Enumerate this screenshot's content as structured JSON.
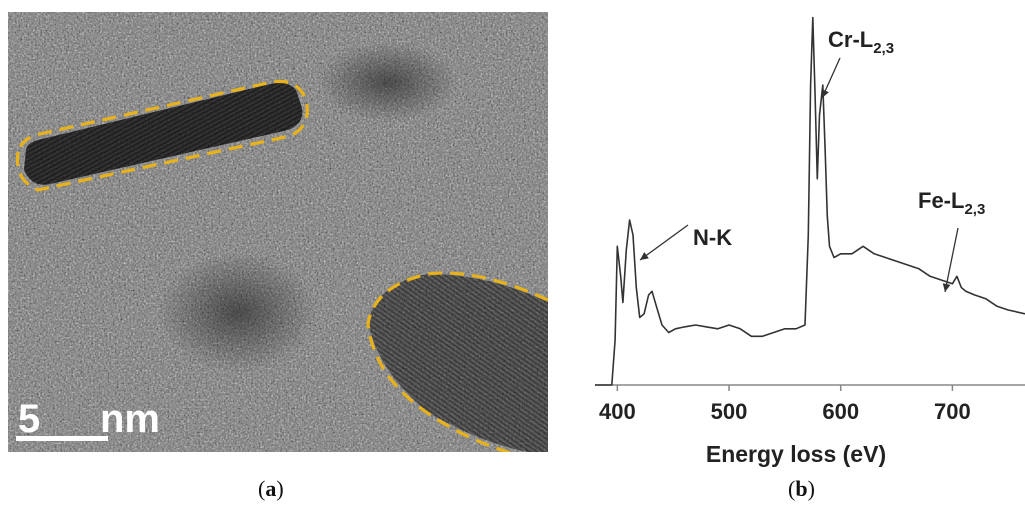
{
  "panel_a": {
    "scale_bar_number": "5",
    "scale_bar_unit": "nm",
    "outline_color": "#E8B21A"
  },
  "captions": {
    "a_open": "(",
    "a_letter": "a",
    "a_close": ")",
    "b_open": "(",
    "b_letter": "b",
    "b_close": ")"
  },
  "chart_data": {
    "type": "line",
    "title": "",
    "xlabel": "Energy loss (eV)",
    "ylabel": "",
    "xlim": [
      380,
      765
    ],
    "ylim": [
      0,
      1
    ],
    "grid": false,
    "xticks": [
      400,
      500,
      600,
      700
    ],
    "series": [
      {
        "color": "#333333",
        "x": [
          380,
          395,
          398,
          400,
          403,
          405,
          408,
          411,
          414,
          417,
          420,
          424,
          428,
          431,
          435,
          440,
          446,
          452,
          460,
          470,
          480,
          490,
          500,
          510,
          520,
          530,
          540,
          550,
          560,
          568,
          571,
          573,
          575,
          577,
          579,
          581,
          584,
          586,
          588,
          590,
          594,
          600,
          610,
          620,
          630,
          640,
          650,
          660,
          670,
          680,
          690,
          700,
          704,
          708,
          712,
          720,
          730,
          740,
          750,
          765
        ],
        "y": [
          0,
          0,
          0.12,
          0.37,
          0.29,
          0.22,
          0.36,
          0.44,
          0.4,
          0.26,
          0.18,
          0.19,
          0.24,
          0.25,
          0.21,
          0.16,
          0.14,
          0.15,
          0.155,
          0.16,
          0.155,
          0.15,
          0.16,
          0.15,
          0.13,
          0.13,
          0.14,
          0.15,
          0.15,
          0.16,
          0.4,
          0.8,
          0.98,
          0.78,
          0.55,
          0.72,
          0.8,
          0.63,
          0.45,
          0.37,
          0.34,
          0.35,
          0.35,
          0.37,
          0.35,
          0.34,
          0.33,
          0.32,
          0.31,
          0.29,
          0.28,
          0.27,
          0.29,
          0.26,
          0.25,
          0.24,
          0.23,
          0.21,
          0.2,
          0.19
        ]
      }
    ],
    "annotations": [
      {
        "label": "N-K",
        "sub": "",
        "target_x": 411,
        "target_y": 0.44
      },
      {
        "label": "Cr-L",
        "sub": "2,3",
        "target_x": 577,
        "target_y": 0.98
      },
      {
        "label": "Fe-L",
        "sub": "2,3",
        "target_x": 704,
        "target_y": 0.29
      }
    ]
  }
}
